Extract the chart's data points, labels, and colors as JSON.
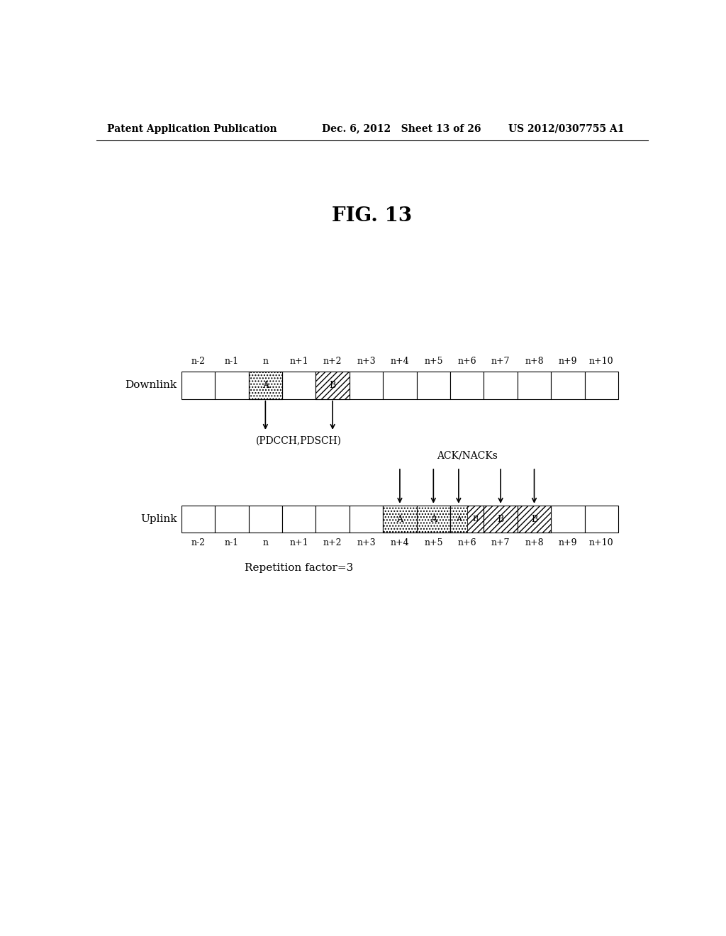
{
  "title": "FIG. 13",
  "header_left": "Patent Application Publication",
  "header_mid": "Dec. 6, 2012   Sheet 13 of 26",
  "header_right": "US 2012/0307755 A1",
  "time_labels": [
    "n-2",
    "n-1",
    "n",
    "n+1",
    "n+2",
    "n+3",
    "n+4",
    "n+5",
    "n+6",
    "n+7",
    "n+8",
    "n+9",
    "n+10"
  ],
  "num_slots": 13,
  "downlink_label": "Downlink",
  "uplink_label": "Uplink",
  "pdcch_label": "(PDCCH,PDSCH)",
  "ack_label": "ACK/NACKs",
  "rep_label": "Repetition factor=3",
  "dl_A_slot": 2,
  "dl_B_slot": 4,
  "background_color": "#ffffff",
  "hatch_A": "....",
  "hatch_B": "////",
  "font_size_header": 10,
  "font_size_title": 20,
  "font_size_label": 11,
  "font_size_tick": 9,
  "font_size_annotation": 10
}
